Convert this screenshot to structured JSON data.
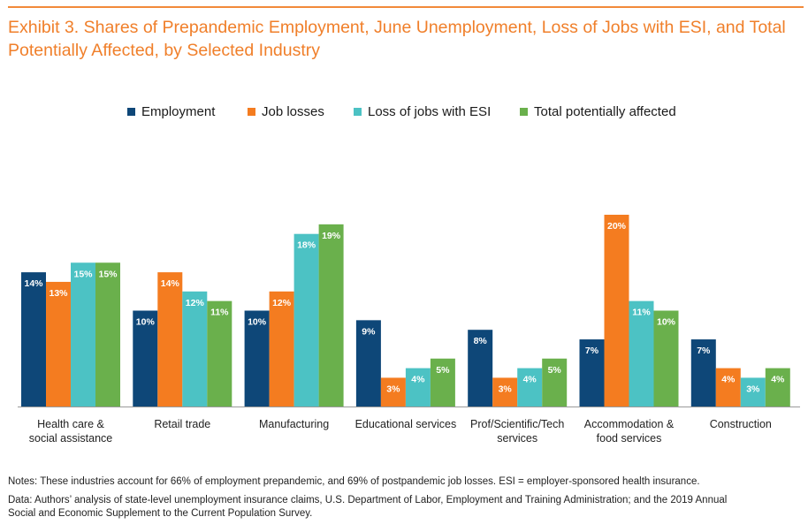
{
  "title": {
    "line1": "Exhibit 3. Shares of Prepandemic Employment, June Unemployment, Loss of Jobs with ESI, and Total",
    "line2": "Potentially Affected, by Selected Industry"
  },
  "notes": {
    "note": "Notes: These industries account for 66% of employment prepandemic, and 69% of postpandemic job losses. ESI = employer-sponsored health insurance.",
    "source_line1": "Data: Authors’ analysis of state-level unemployment insurance claims, U.S. Department of Labor, Employment and Training Administration; and the 2019 Annual",
    "source_line2": "Social and Economic Supplement to the Current Population Survey."
  },
  "colors": {
    "title": "#f07f2a",
    "employment": "#0e4778",
    "job_losses": "#f47c20",
    "esi": "#4cc2c4",
    "total": "#6ab04c"
  },
  "chart_data": {
    "type": "bar",
    "categories": [
      [
        "Health care &",
        "social assistance"
      ],
      [
        "Retail trade"
      ],
      [
        "Manufacturing"
      ],
      [
        "Educational services"
      ],
      [
        "Prof/Scientific/Tech",
        "services"
      ],
      [
        "Accommodation &",
        "food services"
      ],
      [
        "Construction"
      ]
    ],
    "series": [
      {
        "name": "Employment",
        "color": "#0e4778",
        "values": [
          14,
          10,
          10,
          9,
          8,
          7,
          7
        ],
        "labels": [
          "14%",
          "10%",
          "10%",
          "9%",
          "8%",
          "7%",
          "7%"
        ]
      },
      {
        "name": "Job losses",
        "color": "#f47c20",
        "values": [
          13,
          14,
          12,
          3,
          3,
          20,
          4
        ],
        "labels": [
          "13%",
          "14%",
          "12%",
          "3%",
          "3%",
          "20%",
          "4%"
        ]
      },
      {
        "name": "Loss of jobs with ESI",
        "color": "#4cc2c4",
        "values": [
          15,
          12,
          18,
          4,
          4,
          11,
          3
        ],
        "labels": [
          "15%",
          "12%",
          "18%",
          "4%",
          "4%",
          "11%",
          "3%"
        ]
      },
      {
        "name": "Total potentially affected",
        "color": "#6ab04c",
        "values": [
          15,
          11,
          19,
          5,
          5,
          10,
          4
        ],
        "labels": [
          "15%",
          "11%",
          "19%",
          "5%",
          "5%",
          "10%",
          "4%"
        ]
      }
    ],
    "ylim": [
      0,
      21
    ],
    "grid": false,
    "legend_position": "top"
  }
}
